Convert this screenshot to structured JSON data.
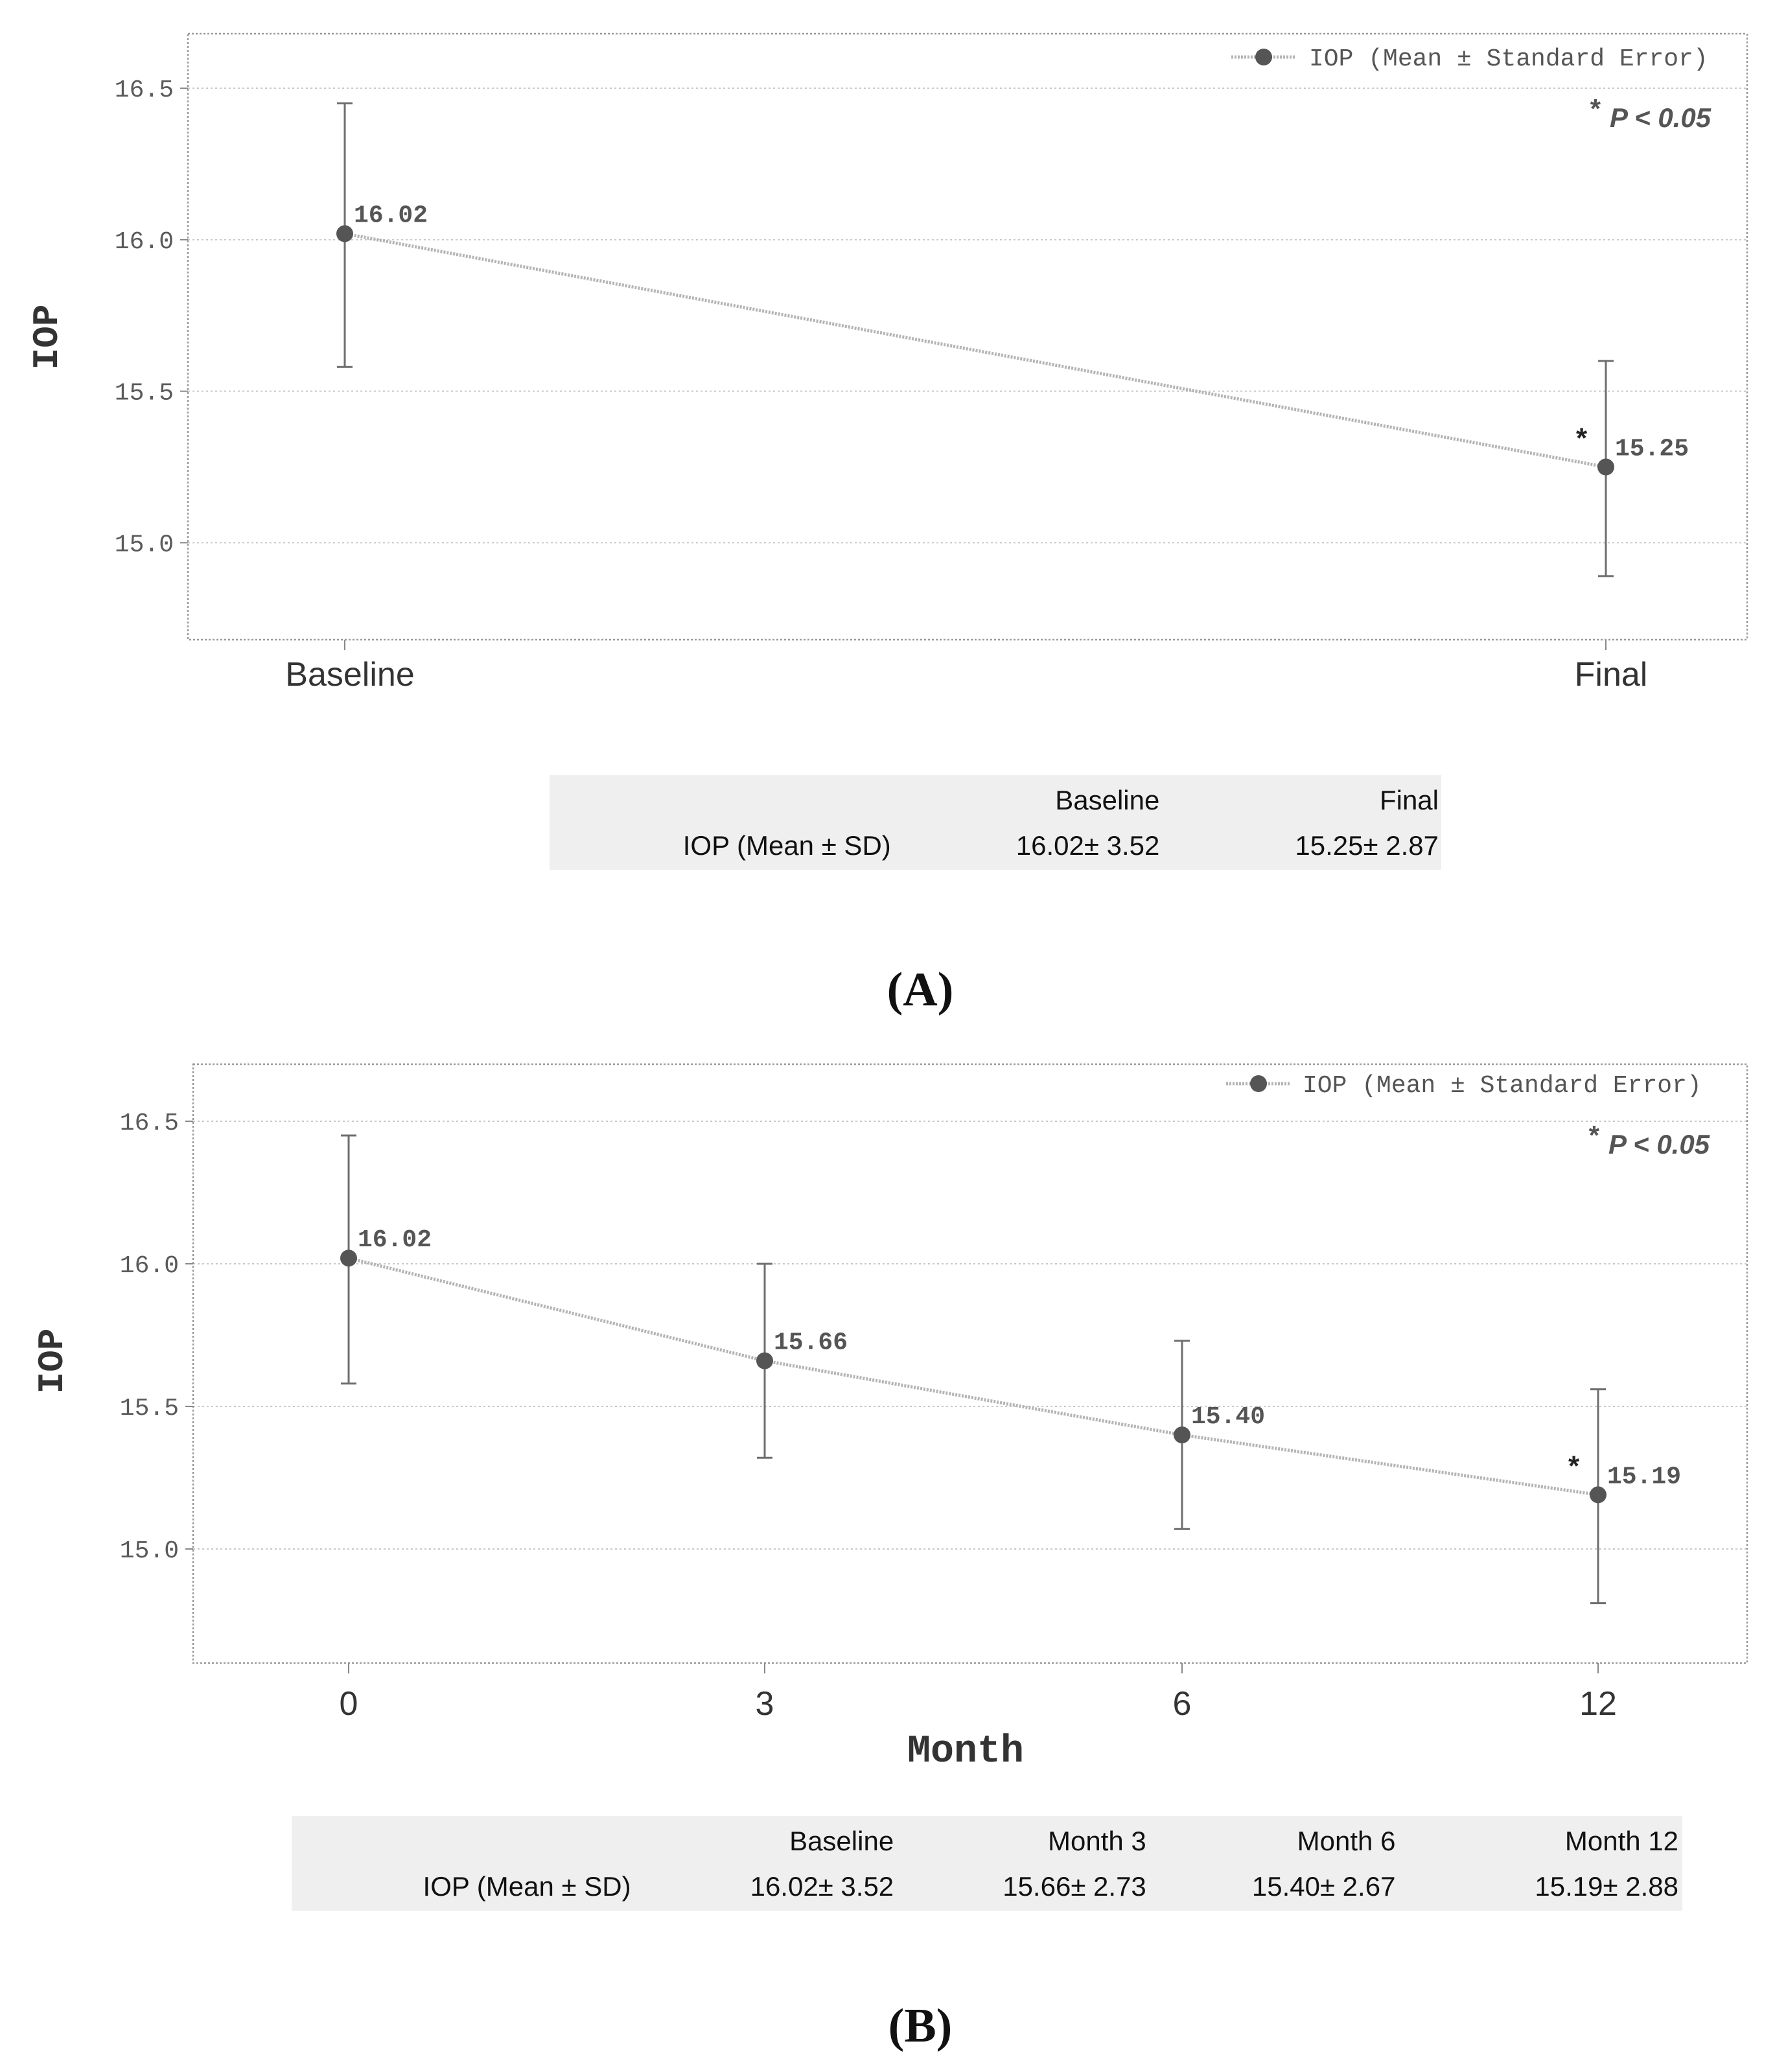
{
  "chart_data": [
    {
      "type": "line",
      "panel_label": "(A)",
      "title": "",
      "xlabel": "",
      "ylabel": "IOP",
      "categories": [
        "Baseline",
        "Final"
      ],
      "series": [
        {
          "name": "IOP (Mean ± Standard Error)",
          "values": [
            16.02,
            15.25
          ],
          "value_labels": [
            "16.02",
            "15.25"
          ],
          "error_low": [
            15.58,
            14.89
          ],
          "error_high": [
            16.45,
            15.6
          ],
          "significant": [
            false,
            true
          ]
        }
      ],
      "ylim": [
        14.68,
        16.68
      ],
      "yticks": [
        15.0,
        15.5,
        16.0,
        16.5
      ],
      "ytick_labels": [
        "15.0",
        "15.5",
        "16.0",
        "16.5"
      ],
      "grid": true,
      "legend_position": "top-right",
      "significance_marker": "*",
      "annotation": "P < 0.05",
      "table": {
        "row_label": "IOP (Mean ± SD)",
        "headers": [
          "Baseline",
          "Final"
        ],
        "values": [
          "16.02± 3.52",
          "15.25± 2.87"
        ]
      }
    },
    {
      "type": "line",
      "panel_label": "(B)",
      "title": "",
      "xlabel": "Month",
      "ylabel": "IOP",
      "categories": [
        "0",
        "3",
        "6",
        "12"
      ],
      "series": [
        {
          "name": "IOP (Mean ± Standard Error)",
          "values": [
            16.02,
            15.66,
            15.4,
            15.19
          ],
          "value_labels": [
            "16.02",
            "15.66",
            "15.40",
            "15.19"
          ],
          "error_low": [
            15.58,
            15.32,
            15.07,
            14.81
          ],
          "error_high": [
            16.45,
            16.0,
            15.73,
            15.56
          ],
          "significant": [
            false,
            false,
            false,
            true
          ]
        }
      ],
      "ylim": [
        14.6,
        16.7
      ],
      "yticks": [
        15.0,
        15.5,
        16.0,
        16.5
      ],
      "ytick_labels": [
        "15.0",
        "15.5",
        "16.0",
        "16.5"
      ],
      "grid": true,
      "legend_position": "top-right",
      "significance_marker": "*",
      "annotation": "P < 0.05",
      "table": {
        "row_label": "IOP (Mean ± SD)",
        "headers": [
          "Baseline",
          "Month 3",
          "Month 6",
          "Month 12"
        ],
        "values": [
          "16.02± 3.52",
          "15.66± 2.73",
          "15.40± 2.67",
          "15.19± 2.88"
        ]
      }
    }
  ]
}
